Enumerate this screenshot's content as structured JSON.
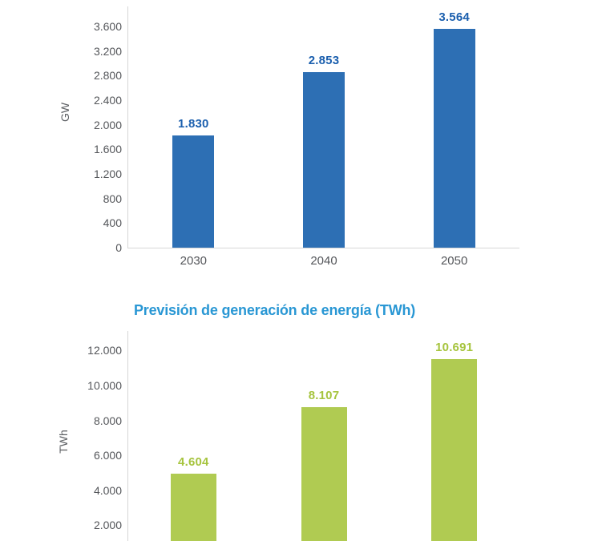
{
  "chart_data": [
    {
      "id": "capacity-forecast",
      "type": "bar",
      "title": "",
      "ylabel": "GW",
      "xlabel": "",
      "categories": [
        "2030",
        "2040",
        "2050"
      ],
      "values": [
        1830,
        2853,
        3564
      ],
      "value_labels": [
        "1.830",
        "2.853",
        "3.564"
      ],
      "ylim": [
        0,
        3600
      ],
      "grid": false,
      "legend": "none",
      "y_ticks": [
        {
          "value": 0,
          "label": "0"
        },
        {
          "value": 400,
          "label": "400"
        },
        {
          "value": 800,
          "label": "800"
        },
        {
          "value": 1200,
          "label": "1.200"
        },
        {
          "value": 1600,
          "label": "1.600"
        },
        {
          "value": 2000,
          "label": "2.000"
        },
        {
          "value": 2400,
          "label": "2.400"
        },
        {
          "value": 2800,
          "label": "2.800"
        },
        {
          "value": 3200,
          "label": "3.200"
        },
        {
          "value": 3600,
          "label": "3.600"
        }
      ],
      "colors": {
        "bar": "#2d6fb4",
        "value_label": "#1b5fae",
        "tick_text": "#54565a",
        "axis_line": "#d6d6d6"
      }
    },
    {
      "id": "generation-forecast",
      "type": "bar",
      "title": "Previsión de generación de energía (TWh)",
      "ylabel": "TWh",
      "xlabel": "",
      "categories": [],
      "values": [
        4604,
        8107,
        10691
      ],
      "value_labels": [
        "4.604",
        "8.107",
        "10.691"
      ],
      "ylim": [
        0,
        12000
      ],
      "grid": false,
      "legend": "none",
      "y_ticks": [
        {
          "value": 2000,
          "label": "2.000"
        },
        {
          "value": 4000,
          "label": "4.000"
        },
        {
          "value": 6000,
          "label": "6.000"
        },
        {
          "value": 8000,
          "label": "8.000"
        },
        {
          "value": 10000,
          "label": "10.000"
        },
        {
          "value": 12000,
          "label": "12.000"
        }
      ],
      "colors": {
        "bar": "#b0cb52",
        "value_label": "#a6c43e",
        "title": "#2997d4",
        "tick_text": "#54565a",
        "axis_line": "#d6d6d6"
      }
    }
  ]
}
